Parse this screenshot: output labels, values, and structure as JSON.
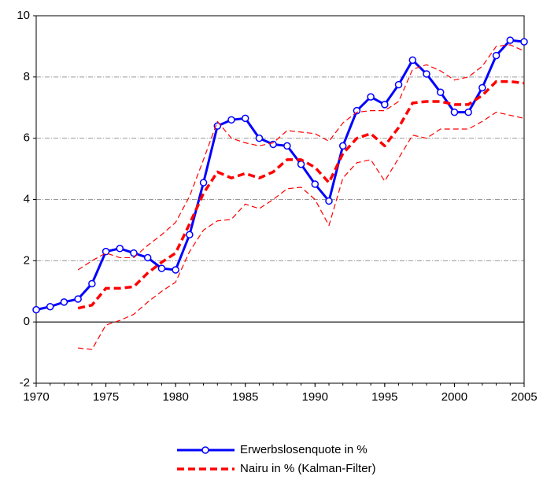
{
  "chart_data": {
    "type": "line",
    "x": [
      1970,
      1971,
      1972,
      1973,
      1974,
      1975,
      1976,
      1977,
      1978,
      1979,
      1980,
      1981,
      1982,
      1983,
      1984,
      1985,
      1986,
      1987,
      1988,
      1989,
      1990,
      1991,
      1992,
      1993,
      1994,
      1995,
      1996,
      1997,
      1998,
      1999,
      2000,
      2001,
      2002,
      2003,
      2004,
      2005
    ],
    "series": [
      {
        "name": "Erwerbslosenquote in %",
        "color": "#0000ff",
        "style": "solid-markers",
        "values": [
          0.4,
          0.5,
          0.65,
          0.75,
          1.25,
          2.3,
          2.4,
          2.25,
          2.1,
          1.75,
          1.7,
          2.85,
          4.55,
          6.4,
          6.6,
          6.65,
          6.0,
          5.8,
          5.75,
          5.15,
          4.5,
          3.95,
          5.75,
          6.9,
          7.35,
          7.1,
          7.75,
          8.55,
          8.1,
          7.5,
          6.85,
          6.85,
          7.65,
          8.7,
          9.2,
          9.15
        ]
      },
      {
        "name": "Nairu in % (Kalman-Filter)",
        "color": "#ff0000",
        "style": "dashed-bold",
        "values": [
          null,
          null,
          null,
          0.45,
          0.55,
          1.1,
          1.1,
          1.15,
          1.6,
          1.95,
          2.25,
          3.2,
          4.2,
          4.9,
          4.7,
          4.85,
          4.7,
          4.9,
          5.3,
          5.3,
          5.05,
          4.55,
          5.5,
          6.0,
          6.15,
          5.75,
          6.35,
          7.15,
          7.2,
          7.2,
          7.1,
          7.1,
          7.4,
          7.85,
          7.85,
          7.8
        ]
      },
      {
        "color": "#ff0000",
        "style": "dashed-thin",
        "values": [
          null,
          null,
          null,
          1.7,
          2.0,
          2.25,
          2.1,
          2.1,
          2.5,
          2.85,
          3.25,
          4.1,
          5.3,
          6.55,
          6.0,
          5.85,
          5.75,
          5.85,
          6.25,
          6.2,
          6.15,
          5.9,
          6.5,
          6.85,
          6.9,
          6.9,
          7.2,
          8.25,
          8.4,
          8.2,
          7.9,
          8.0,
          8.35,
          9.0,
          9.05,
          8.85
        ]
      },
      {
        "color": "#ff0000",
        "style": "dashed-thin",
        "values": [
          null,
          null,
          null,
          -0.85,
          -0.9,
          -0.1,
          0.05,
          0.25,
          0.65,
          1.0,
          1.3,
          2.3,
          3.0,
          3.3,
          3.35,
          3.85,
          3.7,
          4.0,
          4.35,
          4.4,
          4.0,
          3.15,
          4.7,
          5.2,
          5.3,
          4.6,
          5.35,
          6.1,
          6.0,
          6.3,
          6.3,
          6.3,
          6.55,
          6.85,
          6.75,
          6.65
        ]
      }
    ],
    "xlim": [
      1970,
      2005
    ],
    "xticks": [
      1970,
      1975,
      1980,
      1985,
      1990,
      1995,
      2000,
      2005
    ],
    "ylim": [
      -2,
      10
    ],
    "yticks": [
      -2,
      0,
      2,
      4,
      6,
      8,
      10
    ],
    "grid": true,
    "legend": "bottom"
  }
}
